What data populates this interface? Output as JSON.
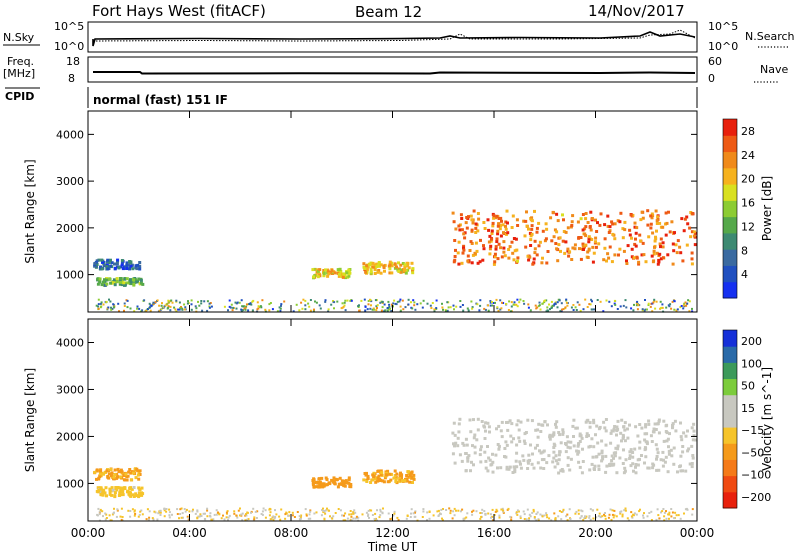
{
  "header": {
    "title": "Fort Hays West (fitACF)",
    "beam": "Beam 12",
    "date": "14/Nov/2017"
  },
  "panels": {
    "nsky_label": "N.Sky",
    "nsky_ticks": [
      "10^5",
      "10^0"
    ],
    "nsearch_ticks": [
      "10^5",
      "10^0"
    ],
    "nsearch_label": "N.Search",
    "freq_label_1": "Freq.",
    "freq_label_2": "[MHz]",
    "freq_ticks": [
      "18",
      "8"
    ],
    "nave_ticks": [
      "60",
      "0"
    ],
    "nave_label": "Nave",
    "cpid_label": "CPID",
    "cpid_value": "normal (fast) 151 IF"
  },
  "colors": {
    "power_scale": [
      "#1530f0",
      "#2050c0",
      "#3a6aa0",
      "#3d8a72",
      "#55a84a",
      "#8ccc33",
      "#d9e020",
      "#f6b21e",
      "#f08a1a",
      "#ee5a14",
      "#e8200c"
    ],
    "velocity_scale": [
      "#e8200c",
      "#f04a12",
      "#f57a18",
      "#f59a1a",
      "#f6c42a",
      "#c8c8c0",
      "#c8c8c0",
      "#7ccc3c",
      "#3c9a5a",
      "#2a6aa8",
      "#1530d8"
    ]
  },
  "chart_data": [
    {
      "type": "heatmap",
      "title": "",
      "xlabel": "",
      "ylabel": "Slant Range [km]",
      "x_ticks": [
        "00:00",
        "04:00",
        "08:00",
        "12:00",
        "16:00",
        "20:00",
        "00:00"
      ],
      "y_ticks": [
        "1000",
        "2000",
        "3000",
        "4000"
      ],
      "ylim": [
        200,
        4500
      ],
      "colorbar": {
        "label": "Power [dB]",
        "ticks": [
          "4",
          "8",
          "12",
          "16",
          "20",
          "24",
          "28"
        ],
        "range": [
          0,
          30
        ]
      },
      "echo_regions": [
        {
          "name": "",
          "x_start": 0.2,
          "x_end": 2.0,
          "y_start": 1150,
          "y_end": 1350,
          "value": 6
        },
        {
          "name": "",
          "x_start": 0.3,
          "x_end": 2.1,
          "y_start": 800,
          "y_end": 950,
          "value": 13
        },
        {
          "name": "",
          "x_start": 8.8,
          "x_end": 10.3,
          "y_start": 950,
          "y_end": 1150,
          "value": 19
        },
        {
          "name": "",
          "x_start": 10.8,
          "x_end": 12.8,
          "y_start": 1050,
          "y_end": 1300,
          "value": 20
        },
        {
          "name": "",
          "x_start": 14.3,
          "x_end": 23.9,
          "y_start": 1250,
          "y_end": 2400,
          "value": 24
        }
      ]
    },
    {
      "type": "heatmap",
      "title": "",
      "xlabel": "Time UT",
      "ylabel": "Slant Range [km]",
      "x_ticks": [
        "00:00",
        "04:00",
        "08:00",
        "12:00",
        "16:00",
        "20:00",
        "00:00"
      ],
      "y_ticks": [
        "1000",
        "2000",
        "3000",
        "4000"
      ],
      "ylim": [
        200,
        4500
      ],
      "colorbar": {
        "label": "Velocity [m s^-1]",
        "ticks": [
          "200",
          "100",
          "50",
          "15",
          "-15",
          "-50",
          "-100",
          "-200"
        ],
        "range": [
          -250,
          250
        ]
      },
      "echo_regions": [
        {
          "name": "",
          "x_start": 0.2,
          "x_end": 2.0,
          "y_start": 1100,
          "y_end": 1350,
          "value": -70
        },
        {
          "name": "",
          "x_start": 0.3,
          "x_end": 2.1,
          "y_start": 750,
          "y_end": 950,
          "value": -40
        },
        {
          "name": "",
          "x_start": 8.8,
          "x_end": 10.3,
          "y_start": 950,
          "y_end": 1150,
          "value": -90
        },
        {
          "name": "",
          "x_start": 10.8,
          "x_end": 12.8,
          "y_start": 1050,
          "y_end": 1300,
          "value": -70
        },
        {
          "name": "",
          "x_start": 14.3,
          "x_end": 23.9,
          "y_start": 1250,
          "y_end": 2400,
          "value": 0
        }
      ]
    }
  ]
}
